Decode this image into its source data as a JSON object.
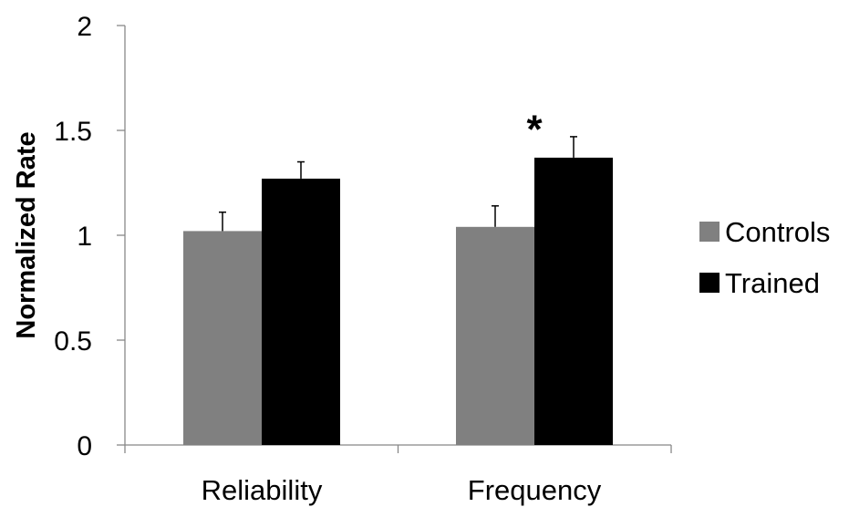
{
  "chart_data": {
    "type": "bar",
    "title": "",
    "xlabel": "",
    "ylabel": "Normalized Rate",
    "ylim": [
      0,
      2
    ],
    "yticks": [
      0,
      0.5,
      1,
      1.5,
      2
    ],
    "ytick_labels": [
      "0",
      "0.5",
      "1",
      "1.5",
      "2"
    ],
    "categories": [
      "Reliability",
      "Frequency"
    ],
    "series": [
      {
        "name": "Controls",
        "color": "#808080",
        "values": [
          1.02,
          1.04
        ],
        "errors": [
          0.09,
          0.1
        ]
      },
      {
        "name": "Trained",
        "color": "#000000",
        "values": [
          1.27,
          1.37
        ],
        "errors": [
          0.08,
          0.1
        ]
      }
    ],
    "error_bars": "upper",
    "grid": false,
    "legend": "right",
    "annotations": [
      {
        "text": "*",
        "category": "Frequency",
        "y": 1.52
      }
    ]
  }
}
